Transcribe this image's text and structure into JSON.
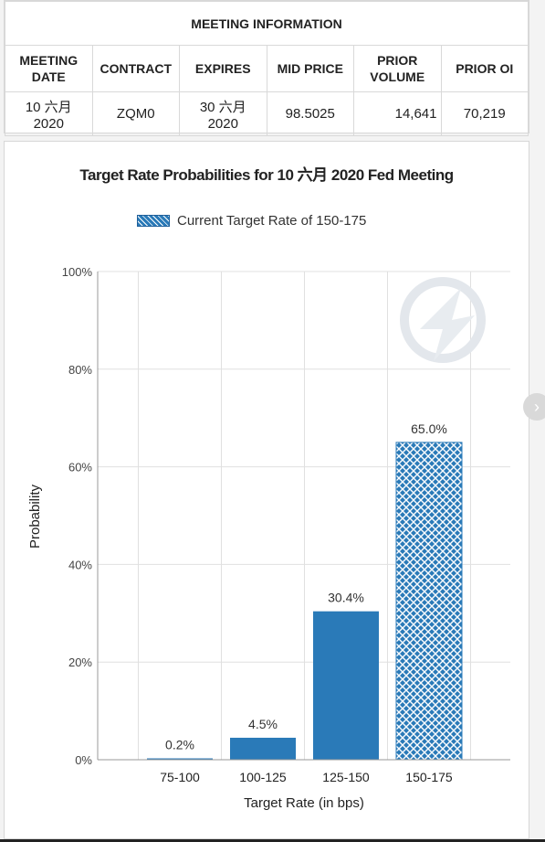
{
  "meeting_info": {
    "caption": "MEETING INFORMATION",
    "headers": [
      "MEETING DATE",
      "CONTRACT",
      "EXPIRES",
      "MID PRICE",
      "PRIOR VOLUME",
      "PRIOR OI"
    ],
    "values": [
      "10 六月 2020",
      "ZQM0",
      "30 六月 2020",
      "98.5025",
      "14,641",
      "70,219"
    ]
  },
  "chart_data": {
    "type": "bar",
    "title": "Target Rate Probabilities for 10 六月 2020 Fed Meeting",
    "legend": "Current Target Rate of 150-175",
    "xlabel": "Target Rate (in bps)",
    "ylabel": "Probability",
    "categories": [
      "75-100",
      "100-125",
      "125-150",
      "150-175"
    ],
    "values": [
      0.2,
      4.5,
      30.4,
      65.0
    ],
    "labels": [
      "0.2%",
      "4.5%",
      "30.4%",
      "65.0%"
    ],
    "current_category": "150-175",
    "ylim": [
      0,
      100
    ],
    "yticks": [
      0,
      20,
      40,
      60,
      80,
      100
    ],
    "ytick_labels": [
      "0%",
      "20%",
      "40%",
      "60%",
      "80%",
      "100%"
    ],
    "grid": true,
    "bar_color": "#2a7ab8",
    "hatch_color": "#ffffff"
  },
  "ui": {
    "next_arrow": "›"
  }
}
